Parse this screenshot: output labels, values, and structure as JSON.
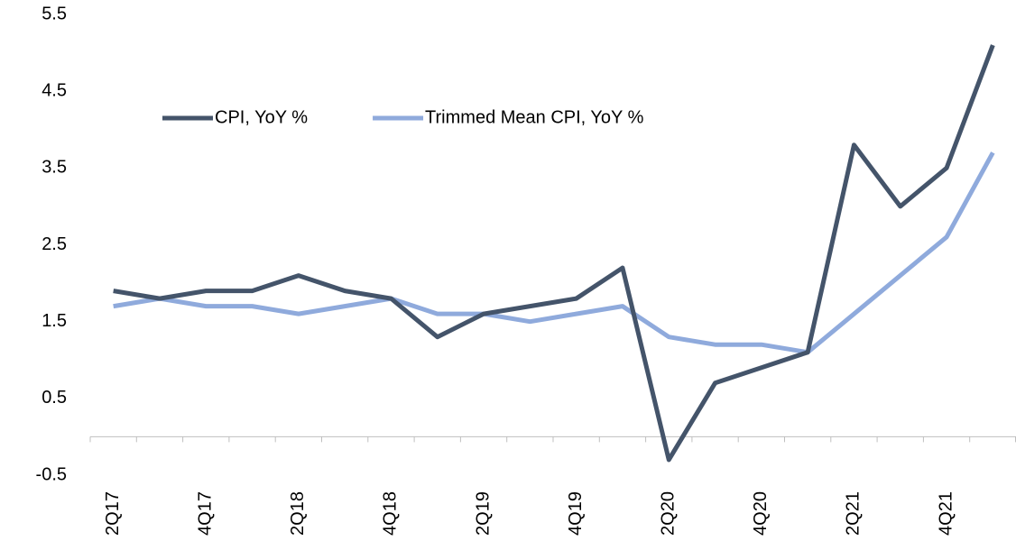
{
  "chart_data": {
    "type": "line",
    "categories": [
      "2Q17",
      null,
      "4Q17",
      null,
      "2Q18",
      null,
      "4Q18",
      null,
      "2Q19",
      null,
      "4Q19",
      null,
      "2Q20",
      null,
      "4Q20",
      null,
      "2Q21",
      null,
      "4Q21",
      null
    ],
    "series": [
      {
        "name": "CPI, YoY %",
        "color": "#44546a",
        "values": [
          1.9,
          1.8,
          1.9,
          1.9,
          2.1,
          1.9,
          1.8,
          1.3,
          1.6,
          1.7,
          1.8,
          2.2,
          -0.3,
          0.7,
          0.9,
          1.1,
          3.8,
          3.0,
          3.5,
          5.1
        ]
      },
      {
        "name": "Trimmed Mean CPI, YoY %",
        "color": "#8faadc",
        "values": [
          1.7,
          1.8,
          1.7,
          1.7,
          1.6,
          1.7,
          1.8,
          1.6,
          1.6,
          1.5,
          1.6,
          1.7,
          1.3,
          1.2,
          1.2,
          1.1,
          1.6,
          2.1,
          2.6,
          3.7
        ]
      }
    ],
    "ylim": [
      -0.5,
      5.5
    ],
    "yticks": [
      -0.5,
      0.5,
      1.5,
      2.5,
      3.5,
      4.5,
      5.5
    ],
    "grid": false,
    "legend": "top-left"
  }
}
